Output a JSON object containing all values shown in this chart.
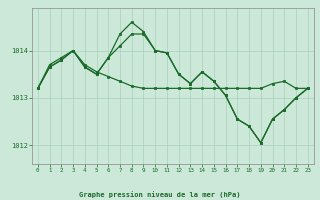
{
  "title": "Graphe pression niveau de la mer (hPa)",
  "bg_color": "#cce8d8",
  "plot_bg_color": "#cce8d8",
  "line_color": "#1a6b2a",
  "marker_color": "#1a6b2a",
  "grid_color": "#aacfba",
  "axis_color": "#555555",
  "tick_label_color": "#1a6b2a",
  "title_color": "#1a6b2a",
  "ylim": [
    1011.6,
    1014.9
  ],
  "yticks": [
    1012,
    1013,
    1014
  ],
  "xlim": [
    -0.5,
    23.5
  ],
  "xticks": [
    0,
    1,
    2,
    3,
    4,
    5,
    6,
    7,
    8,
    9,
    10,
    11,
    12,
    13,
    14,
    15,
    16,
    17,
    18,
    19,
    20,
    21,
    22,
    23
  ],
  "line1": [
    1013.2,
    1013.65,
    1013.8,
    1014.0,
    1013.65,
    1013.5,
    1013.85,
    1014.35,
    1014.6,
    1014.4,
    1014.0,
    1013.95,
    1013.5,
    1013.3,
    1013.55,
    1013.35,
    1013.05,
    1012.55,
    1012.4,
    1012.05,
    1012.55,
    1012.75,
    1013.0,
    1013.2
  ],
  "line2": [
    1013.2,
    1013.65,
    1013.8,
    1014.0,
    1013.65,
    1013.5,
    1013.85,
    1014.1,
    1014.35,
    1014.35,
    1014.0,
    1013.95,
    1013.5,
    1013.3,
    1013.55,
    1013.35,
    1013.05,
    1012.55,
    1012.4,
    1012.05,
    1012.55,
    1012.75,
    1013.0,
    1013.2
  ],
  "line3": [
    1013.2,
    1013.7,
    1013.85,
    1014.0,
    1013.7,
    1013.55,
    1013.45,
    1013.35,
    1013.25,
    1013.2,
    1013.2,
    1013.2,
    1013.2,
    1013.2,
    1013.2,
    1013.2,
    1013.2,
    1013.2,
    1013.2,
    1013.2,
    1013.3,
    1013.35,
    1013.2,
    1013.2
  ]
}
